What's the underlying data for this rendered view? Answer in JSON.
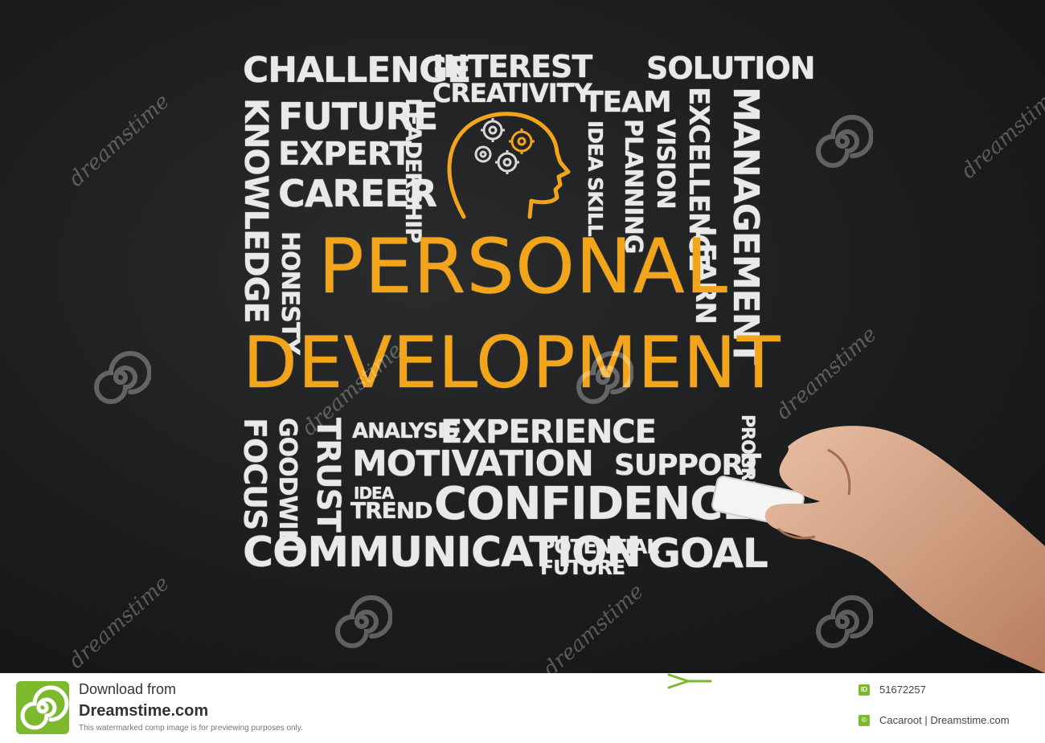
{
  "words": {
    "challenge": "CHALLENGE",
    "interest": "INTEREST",
    "solution": "SOLUTION",
    "creativity": "CREATIVITY",
    "team": "TEAM",
    "future_top": "FUTURE",
    "expert": "EXPERT",
    "career": "CAREER",
    "knowledge": "KNOWLEDGE",
    "leadership": "LEADERSHIP",
    "idea_skill": "IDEA SKILL",
    "planning": "PLANNING",
    "vision": "VISION",
    "excellence": "EXCELLENCE",
    "management": "MANAGEMENT",
    "honesty": "HONESTY",
    "learn": "LEARN",
    "personal": "PERSONAL",
    "development": "DEVELOPMENT",
    "focus": "FOCUS",
    "goodwill": "GOODWILL",
    "trust": "TRUST",
    "analysis": "ANALYSIS",
    "experience": "EXPERIENCE",
    "progress": "PROGRESS",
    "motivation": "MOTIVATION",
    "support": "SUPPORT",
    "idea": "IDEA",
    "trend": "TREND",
    "confidence": "CONFIDENCE",
    "communication": "COMMUNICATION",
    "potential": "POTENTIAL",
    "future_bottom": "FUTURE",
    "goal": "GOAL"
  },
  "watermark": {
    "text": "dreamstime"
  },
  "footer": {
    "download_from": "Download from",
    "site": "Dreamstime.com",
    "notice": "This watermarked comp image is for previewing purposes only.",
    "id_badge": "ID",
    "image_id": "51672257",
    "author_badge": "©",
    "author": "Cacaroot | Dreamstime.com"
  },
  "colors": {
    "board": "#1c1d1f",
    "chalk": "#e9e9e9",
    "accent": "#f2a51b",
    "brand": "#7cb92c"
  }
}
